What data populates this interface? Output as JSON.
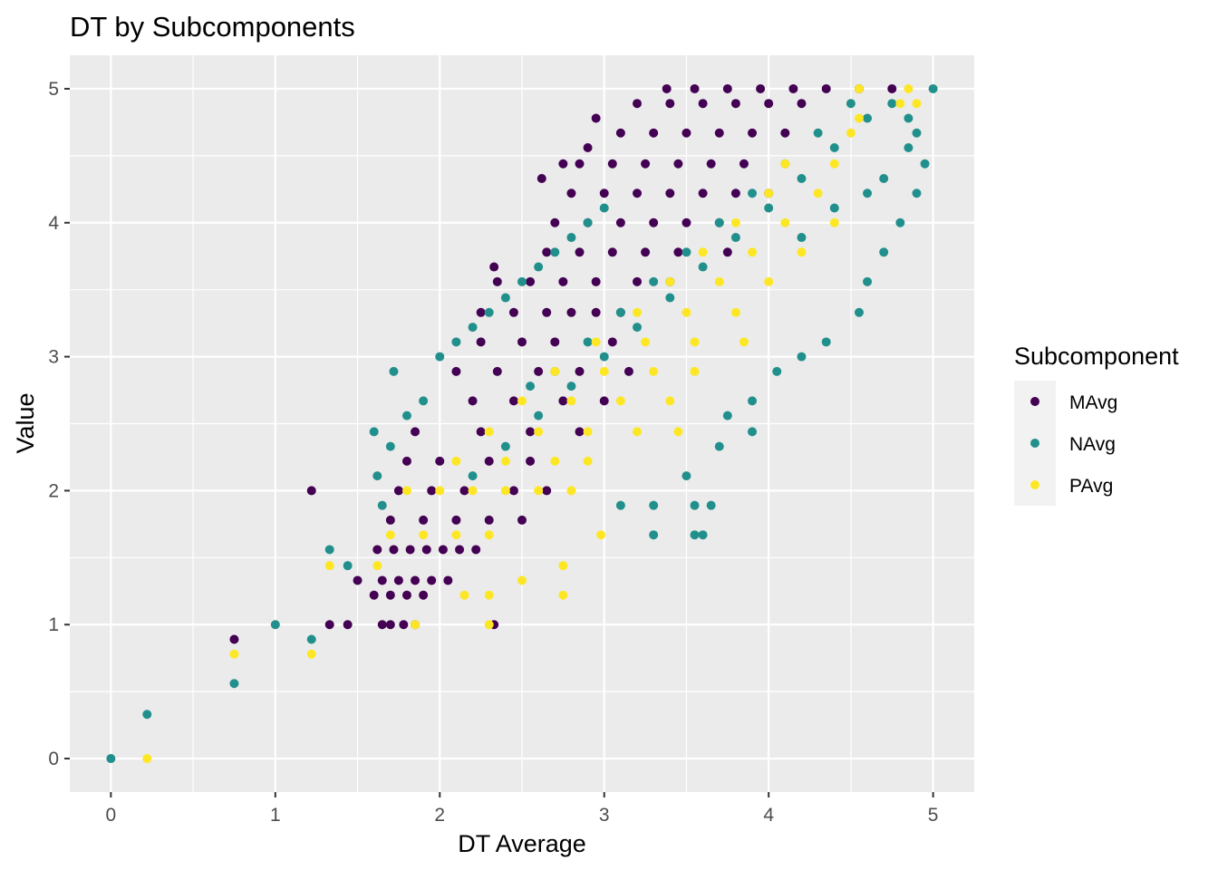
{
  "chart_data": {
    "type": "scatter",
    "title": "DT by Subcomponents",
    "xlabel": "DT Average",
    "ylabel": "Value",
    "xlim": [
      -0.25,
      5.25
    ],
    "ylim": [
      -0.25,
      5.25
    ],
    "x_ticks": [
      "0",
      "1",
      "2",
      "3",
      "4",
      "5"
    ],
    "y_ticks": [
      "0",
      "1",
      "2",
      "3",
      "4",
      "5"
    ],
    "grid": true,
    "legend": {
      "title": "Subcomponent",
      "placement": "right",
      "entries": [
        "MAvg",
        "NAvg",
        "PAvg"
      ]
    },
    "colors": {
      "MAvg": "#440154",
      "NAvg": "#21908C",
      "PAvg": "#FDE725"
    },
    "series": [
      {
        "name": "MAvg",
        "points": [
          [
            0.75,
            0.89
          ],
          [
            1.22,
            2.0
          ],
          [
            1.33,
            1.0
          ],
          [
            1.44,
            1.0
          ],
          [
            1.5,
            1.33
          ],
          [
            1.65,
            1.0
          ],
          [
            1.7,
            1.0
          ],
          [
            1.78,
            1.0
          ],
          [
            1.85,
            1.0
          ],
          [
            2.33,
            1.0
          ],
          [
            1.6,
            1.22
          ],
          [
            1.7,
            1.22
          ],
          [
            1.8,
            1.22
          ],
          [
            1.9,
            1.22
          ],
          [
            1.65,
            1.33
          ],
          [
            1.75,
            1.33
          ],
          [
            1.85,
            1.33
          ],
          [
            1.95,
            1.33
          ],
          [
            2.05,
            1.33
          ],
          [
            1.62,
            1.56
          ],
          [
            1.72,
            1.56
          ],
          [
            1.82,
            1.56
          ],
          [
            1.92,
            1.56
          ],
          [
            2.02,
            1.56
          ],
          [
            2.12,
            1.56
          ],
          [
            2.22,
            1.56
          ],
          [
            1.7,
            1.78
          ],
          [
            1.9,
            1.78
          ],
          [
            2.1,
            1.78
          ],
          [
            2.3,
            1.78
          ],
          [
            2.5,
            1.78
          ],
          [
            1.75,
            2.0
          ],
          [
            1.95,
            2.0
          ],
          [
            2.15,
            2.0
          ],
          [
            2.45,
            2.0
          ],
          [
            2.65,
            2.0
          ],
          [
            1.8,
            2.22
          ],
          [
            2.0,
            2.22
          ],
          [
            2.3,
            2.22
          ],
          [
            2.55,
            2.22
          ],
          [
            1.85,
            2.44
          ],
          [
            2.25,
            2.44
          ],
          [
            2.55,
            2.44
          ],
          [
            2.85,
            2.44
          ],
          [
            2.2,
            2.67
          ],
          [
            2.45,
            2.67
          ],
          [
            2.75,
            2.67
          ],
          [
            3.0,
            2.67
          ],
          [
            2.1,
            2.89
          ],
          [
            2.35,
            2.89
          ],
          [
            2.6,
            2.89
          ],
          [
            2.85,
            2.89
          ],
          [
            3.15,
            2.89
          ],
          [
            2.25,
            3.11
          ],
          [
            2.5,
            3.11
          ],
          [
            2.7,
            3.11
          ],
          [
            3.05,
            3.11
          ],
          [
            2.25,
            3.33
          ],
          [
            2.45,
            3.33
          ],
          [
            2.65,
            3.33
          ],
          [
            2.8,
            3.33
          ],
          [
            2.95,
            3.33
          ],
          [
            3.1,
            3.33
          ],
          [
            2.35,
            3.56
          ],
          [
            2.55,
            3.56
          ],
          [
            2.75,
            3.56
          ],
          [
            2.95,
            3.56
          ],
          [
            3.2,
            3.56
          ],
          [
            3.4,
            3.56
          ],
          [
            2.33,
            3.67
          ],
          [
            2.65,
            3.78
          ],
          [
            2.85,
            3.78
          ],
          [
            3.05,
            3.78
          ],
          [
            3.25,
            3.78
          ],
          [
            3.45,
            3.78
          ],
          [
            3.75,
            3.78
          ],
          [
            2.7,
            4.0
          ],
          [
            2.9,
            4.0
          ],
          [
            3.1,
            4.0
          ],
          [
            3.3,
            4.0
          ],
          [
            3.5,
            4.0
          ],
          [
            3.7,
            4.0
          ],
          [
            2.8,
            4.22
          ],
          [
            3.0,
            4.22
          ],
          [
            3.2,
            4.22
          ],
          [
            3.4,
            4.22
          ],
          [
            3.6,
            4.22
          ],
          [
            3.8,
            4.22
          ],
          [
            4.0,
            4.22
          ],
          [
            2.62,
            4.33
          ],
          [
            2.75,
            4.44
          ],
          [
            2.85,
            4.44
          ],
          [
            3.05,
            4.44
          ],
          [
            3.25,
            4.44
          ],
          [
            3.45,
            4.44
          ],
          [
            3.65,
            4.44
          ],
          [
            3.85,
            4.44
          ],
          [
            2.9,
            4.56
          ],
          [
            3.1,
            4.67
          ],
          [
            3.3,
            4.67
          ],
          [
            3.5,
            4.67
          ],
          [
            3.7,
            4.67
          ],
          [
            3.9,
            4.67
          ],
          [
            4.1,
            4.67
          ],
          [
            2.95,
            4.78
          ],
          [
            3.2,
            4.89
          ],
          [
            3.4,
            4.89
          ],
          [
            3.6,
            4.89
          ],
          [
            3.8,
            4.89
          ],
          [
            4.0,
            4.89
          ],
          [
            4.2,
            4.89
          ],
          [
            3.38,
            5.0
          ],
          [
            3.55,
            5.0
          ],
          [
            3.75,
            5.0
          ],
          [
            3.95,
            5.0
          ],
          [
            4.15,
            5.0
          ],
          [
            4.35,
            5.0
          ],
          [
            4.55,
            5.0
          ],
          [
            4.75,
            5.0
          ]
        ]
      },
      {
        "name": "NAvg",
        "points": [
          [
            0.0,
            0.0
          ],
          [
            0.22,
            0.33
          ],
          [
            0.75,
            0.56
          ],
          [
            1.0,
            1.0
          ],
          [
            1.22,
            0.89
          ],
          [
            1.33,
            1.56
          ],
          [
            1.44,
            1.44
          ],
          [
            1.72,
            2.89
          ],
          [
            1.6,
            2.44
          ],
          [
            1.7,
            2.33
          ],
          [
            1.62,
            2.11
          ],
          [
            1.65,
            1.89
          ],
          [
            1.8,
            2.56
          ],
          [
            1.9,
            2.67
          ],
          [
            2.0,
            3.0
          ],
          [
            2.1,
            3.11
          ],
          [
            2.2,
            3.22
          ],
          [
            2.3,
            3.33
          ],
          [
            2.4,
            3.44
          ],
          [
            2.5,
            3.56
          ],
          [
            2.6,
            3.67
          ],
          [
            2.7,
            3.78
          ],
          [
            2.8,
            3.89
          ],
          [
            2.9,
            4.0
          ],
          [
            3.0,
            4.11
          ],
          [
            2.2,
            2.11
          ],
          [
            2.4,
            2.33
          ],
          [
            2.6,
            2.56
          ],
          [
            2.8,
            2.78
          ],
          [
            3.0,
            3.0
          ],
          [
            3.2,
            3.22
          ],
          [
            3.4,
            3.44
          ],
          [
            3.6,
            3.67
          ],
          [
            3.8,
            3.89
          ],
          [
            4.0,
            4.11
          ],
          [
            4.2,
            4.33
          ],
          [
            4.4,
            4.56
          ],
          [
            4.6,
            4.78
          ],
          [
            3.3,
            1.67
          ],
          [
            3.55,
            1.67
          ],
          [
            3.6,
            1.67
          ],
          [
            3.55,
            1.89
          ],
          [
            3.65,
            1.89
          ],
          [
            3.1,
            1.89
          ],
          [
            3.3,
            1.89
          ],
          [
            3.5,
            2.11
          ],
          [
            3.7,
            2.33
          ],
          [
            3.9,
            2.44
          ],
          [
            3.75,
            2.56
          ],
          [
            3.9,
            2.67
          ],
          [
            4.05,
            2.89
          ],
          [
            4.2,
            3.0
          ],
          [
            4.35,
            3.11
          ],
          [
            4.55,
            3.33
          ],
          [
            4.6,
            3.56
          ],
          [
            4.7,
            3.78
          ],
          [
            4.8,
            4.0
          ],
          [
            4.9,
            4.22
          ],
          [
            4.95,
            4.44
          ],
          [
            4.85,
            4.56
          ],
          [
            4.9,
            4.67
          ],
          [
            5.0,
            5.0
          ],
          [
            4.2,
            3.89
          ],
          [
            4.4,
            4.11
          ],
          [
            4.6,
            4.22
          ],
          [
            4.7,
            4.33
          ],
          [
            4.85,
            4.78
          ],
          [
            4.75,
            4.89
          ],
          [
            2.55,
            2.78
          ],
          [
            2.7,
            2.89
          ],
          [
            2.9,
            3.11
          ],
          [
            3.1,
            3.33
          ],
          [
            3.3,
            3.56
          ],
          [
            3.5,
            3.78
          ],
          [
            3.7,
            4.0
          ],
          [
            3.9,
            4.22
          ],
          [
            4.1,
            4.44
          ],
          [
            4.3,
            4.67
          ],
          [
            4.5,
            4.89
          ]
        ]
      },
      {
        "name": "PAvg",
        "points": [
          [
            0.22,
            0.0
          ],
          [
            0.75,
            0.78
          ],
          [
            1.22,
            0.78
          ],
          [
            1.33,
            1.44
          ],
          [
            1.62,
            1.44
          ],
          [
            1.85,
            1.0
          ],
          [
            2.15,
            1.22
          ],
          [
            2.3,
            1.22
          ],
          [
            2.75,
            1.22
          ],
          [
            2.3,
            1.0
          ],
          [
            2.5,
            1.33
          ],
          [
            2.75,
            1.44
          ],
          [
            2.98,
            1.67
          ],
          [
            1.7,
            1.67
          ],
          [
            1.9,
            1.67
          ],
          [
            2.1,
            1.67
          ],
          [
            2.3,
            1.67
          ],
          [
            1.8,
            2.0
          ],
          [
            2.0,
            2.0
          ],
          [
            2.2,
            2.0
          ],
          [
            2.4,
            2.0
          ],
          [
            2.6,
            2.0
          ],
          [
            2.8,
            2.0
          ],
          [
            2.1,
            2.22
          ],
          [
            2.4,
            2.22
          ],
          [
            2.7,
            2.22
          ],
          [
            2.9,
            2.22
          ],
          [
            2.3,
            2.44
          ],
          [
            2.6,
            2.44
          ],
          [
            2.9,
            2.44
          ],
          [
            3.2,
            2.44
          ],
          [
            3.45,
            2.44
          ],
          [
            2.5,
            2.67
          ],
          [
            2.8,
            2.67
          ],
          [
            3.1,
            2.67
          ],
          [
            3.4,
            2.67
          ],
          [
            2.7,
            2.89
          ],
          [
            3.0,
            2.89
          ],
          [
            3.3,
            2.89
          ],
          [
            3.55,
            2.89
          ],
          [
            2.95,
            3.11
          ],
          [
            3.25,
            3.11
          ],
          [
            3.55,
            3.11
          ],
          [
            3.85,
            3.11
          ],
          [
            3.2,
            3.33
          ],
          [
            3.5,
            3.33
          ],
          [
            3.8,
            3.33
          ],
          [
            3.4,
            3.56
          ],
          [
            3.7,
            3.56
          ],
          [
            4.0,
            3.56
          ],
          [
            3.6,
            3.78
          ],
          [
            3.9,
            3.78
          ],
          [
            4.2,
            3.78
          ],
          [
            3.8,
            4.0
          ],
          [
            4.1,
            4.0
          ],
          [
            4.4,
            4.0
          ],
          [
            4.0,
            4.22
          ],
          [
            4.3,
            4.22
          ],
          [
            4.1,
            4.44
          ],
          [
            4.4,
            4.44
          ],
          [
            4.5,
            4.67
          ],
          [
            4.55,
            4.78
          ],
          [
            4.8,
            4.89
          ],
          [
            4.9,
            4.89
          ],
          [
            4.85,
            5.0
          ],
          [
            4.55,
            5.0
          ]
        ]
      }
    ]
  }
}
